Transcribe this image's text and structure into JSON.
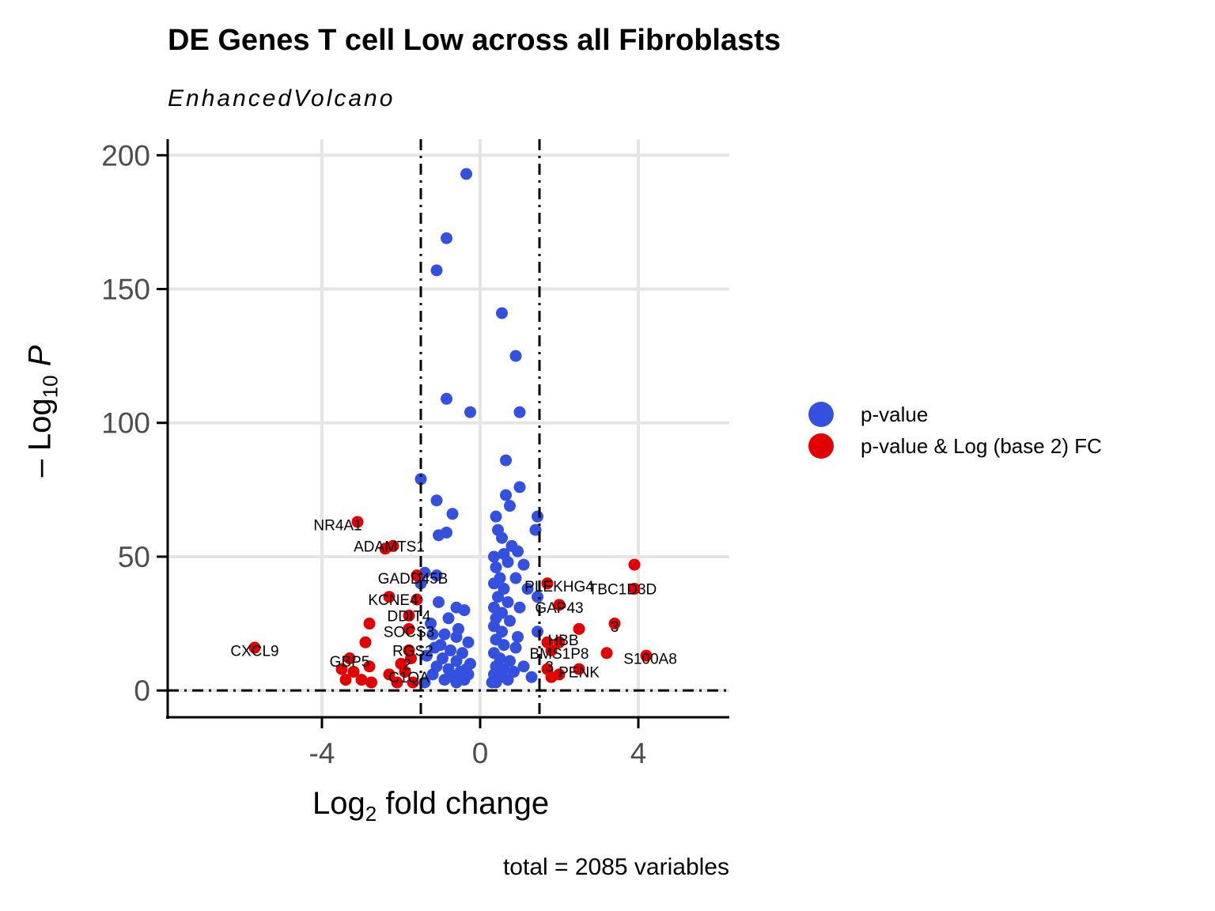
{
  "header": {
    "title": "DE Genes T cell Low across all Fibroblasts",
    "subtitle": "EnhancedVolcano",
    "caption": "total = 2085 variables"
  },
  "axes": {
    "y_label_minus": "– Log",
    "y_label_sub": "10",
    "y_label_p": "P",
    "x_label_pre": "Log",
    "x_label_sub": "2",
    "x_label_post": " fold change"
  },
  "legend": {
    "items": [
      {
        "label": "p-value",
        "color": "#3450DF"
      },
      {
        "label": "p-value & Log (base 2) FC",
        "color": "#E30000"
      }
    ]
  },
  "chart_data": {
    "type": "scatter",
    "title": "DE Genes T cell Low across all Fibroblasts",
    "subtitle": "EnhancedVolcano",
    "caption": "total = 2085 variables",
    "xlabel": "Log2 fold change",
    "ylabel": "-Log10 P",
    "xlim": [
      -7.9,
      6.3
    ],
    "ylim": [
      -10,
      206
    ],
    "x_ticks": [
      -4,
      0,
      4
    ],
    "y_ticks": [
      0,
      50,
      100,
      150,
      200
    ],
    "grid": true,
    "legend_position": "right",
    "cutoffs": {
      "fc": [
        -1.5,
        1.5
      ],
      "p_line_y": 0
    },
    "series": [
      {
        "name": "p-value",
        "color": "#3450DF",
        "points": [
          [
            -0.35,
            193
          ],
          [
            -0.85,
            169
          ],
          [
            -1.1,
            157
          ],
          [
            0.55,
            141
          ],
          [
            0.9,
            125
          ],
          [
            -0.85,
            109
          ],
          [
            -0.25,
            104
          ],
          [
            1.0,
            104
          ],
          [
            0.65,
            86
          ],
          [
            -1.5,
            79
          ],
          [
            1.0,
            76
          ],
          [
            0.65,
            73
          ],
          [
            0.75,
            69
          ],
          [
            -1.1,
            71
          ],
          [
            -0.7,
            66
          ],
          [
            1.45,
            65
          ],
          [
            0.4,
            65
          ],
          [
            1.4,
            60
          ],
          [
            -1.05,
            58
          ],
          [
            -0.85,
            59
          ],
          [
            0.45,
            60
          ],
          [
            0.55,
            57
          ],
          [
            0.8,
            54
          ],
          [
            0.95,
            52
          ],
          [
            0.6,
            51
          ],
          [
            0.35,
            50
          ],
          [
            0.7,
            48
          ],
          [
            1.1,
            47
          ],
          [
            0.4,
            46
          ],
          [
            0.5,
            42
          ],
          [
            0.9,
            42
          ],
          [
            0.35,
            40
          ],
          [
            0.6,
            38
          ],
          [
            1.2,
            38
          ],
          [
            0.45,
            35
          ],
          [
            1.45,
            35
          ],
          [
            0.7,
            33
          ],
          [
            0.35,
            31
          ],
          [
            0.55,
            29
          ],
          [
            1.0,
            31
          ],
          [
            0.4,
            27
          ],
          [
            0.75,
            26
          ],
          [
            0.35,
            24
          ],
          [
            0.55,
            22
          ],
          [
            1.45,
            22
          ],
          [
            0.4,
            19
          ],
          [
            0.6,
            17
          ],
          [
            0.9,
            16
          ],
          [
            0.35,
            14
          ],
          [
            0.5,
            12
          ],
          [
            0.75,
            11
          ],
          [
            0.4,
            9
          ],
          [
            0.6,
            8
          ],
          [
            0.85,
            7
          ],
          [
            1.1,
            9
          ],
          [
            0.35,
            6
          ],
          [
            0.5,
            5
          ],
          [
            0.7,
            4
          ],
          [
            1.3,
            5
          ],
          [
            0.4,
            3
          ],
          [
            -1.4,
            44
          ],
          [
            -1.1,
            43
          ],
          [
            -1.5,
            40
          ],
          [
            -1.05,
            33
          ],
          [
            -0.6,
            31
          ],
          [
            -0.4,
            30
          ],
          [
            -0.8,
            27
          ],
          [
            -1.25,
            25
          ],
          [
            -0.55,
            23
          ],
          [
            -0.9,
            21
          ],
          [
            -1.2,
            21
          ],
          [
            -0.6,
            20
          ],
          [
            -0.3,
            18
          ],
          [
            -1.0,
            17
          ],
          [
            -0.75,
            15
          ],
          [
            -0.45,
            14
          ],
          [
            -1.35,
            13
          ],
          [
            -0.95,
            12
          ],
          [
            -0.6,
            11
          ],
          [
            -0.25,
            10
          ],
          [
            -1.1,
            9
          ],
          [
            -0.8,
            8
          ],
          [
            -0.5,
            7
          ],
          [
            -0.3,
            6
          ],
          [
            -1.2,
            6
          ],
          [
            -0.7,
            5
          ],
          [
            -0.9,
            4
          ],
          [
            -0.4,
            4
          ],
          [
            -1.4,
            3
          ],
          [
            -0.6,
            3
          ],
          [
            0.3,
            3
          ],
          [
            -1.15,
            16
          ],
          [
            -0.35,
            8
          ],
          [
            -0.75,
            6
          ],
          [
            0.95,
            20
          ]
        ]
      },
      {
        "name": "p-value & Log (base 2) FC",
        "color": "#E30000",
        "points": [
          [
            -5.7,
            16
          ],
          [
            -3.1,
            63
          ],
          [
            -2.4,
            53
          ],
          [
            -2.2,
            54
          ],
          [
            -1.6,
            43
          ],
          [
            -2.3,
            35
          ],
          [
            -1.6,
            34
          ],
          [
            -1.8,
            28
          ],
          [
            -2.8,
            25
          ],
          [
            -1.8,
            23
          ],
          [
            -2.9,
            18
          ],
          [
            -1.8,
            15
          ],
          [
            -3.3,
            12
          ],
          [
            -1.75,
            12
          ],
          [
            -3.5,
            8
          ],
          [
            -2.8,
            9
          ],
          [
            -3.2,
            7
          ],
          [
            -1.9,
            7
          ],
          [
            -3.4,
            4
          ],
          [
            -3.0,
            4
          ],
          [
            -2.75,
            3
          ],
          [
            -2.1,
            3
          ],
          [
            -1.7,
            3
          ],
          [
            -2.3,
            6
          ],
          [
            -2.0,
            10
          ],
          [
            1.7,
            40
          ],
          [
            2.0,
            32
          ],
          [
            3.9,
            47
          ],
          [
            3.9,
            38
          ],
          [
            3.4,
            25
          ],
          [
            2.5,
            23
          ],
          [
            2.0,
            18
          ],
          [
            1.7,
            18
          ],
          [
            1.8,
            15
          ],
          [
            3.2,
            14
          ],
          [
            4.2,
            13
          ],
          [
            2.5,
            8
          ],
          [
            1.7,
            8
          ],
          [
            2.0,
            6
          ],
          [
            1.8,
            5
          ]
        ]
      }
    ],
    "labels": [
      {
        "text": "NR4A1",
        "x": -3.6,
        "y": 62
      },
      {
        "text": "ADAMTS1",
        "x": -2.3,
        "y": 54
      },
      {
        "text": "GADD45B",
        "x": -1.7,
        "y": 42
      },
      {
        "text": "KCNE4",
        "x": -2.2,
        "y": 34
      },
      {
        "text": "DDIT4",
        "x": -1.8,
        "y": 28
      },
      {
        "text": "SOCS3",
        "x": -1.8,
        "y": 22
      },
      {
        "text": "CXCL9",
        "x": -5.7,
        "y": 15
      },
      {
        "text": "RGS2",
        "x": -1.7,
        "y": 15
      },
      {
        "text": "GBP5",
        "x": -3.3,
        "y": 11
      },
      {
        "text": "2",
        "x": -1.85,
        "y": 10
      },
      {
        "text": "C1QA",
        "x": -1.8,
        "y": 5
      },
      {
        "text": "PLEKHG4",
        "x": 2.0,
        "y": 39
      },
      {
        "text": "TBC1D3D",
        "x": 3.6,
        "y": 38
      },
      {
        "text": "GAP43",
        "x": 2.0,
        "y": 31
      },
      {
        "text": "3",
        "x": 3.4,
        "y": 24
      },
      {
        "text": "HBB",
        "x": 2.1,
        "y": 19
      },
      {
        "text": "BMS1P8",
        "x": 2.0,
        "y": 14
      },
      {
        "text": "S100A8",
        "x": 4.3,
        "y": 12
      },
      {
        "text": "3",
        "x": 1.75,
        "y": 9
      },
      {
        "text": "PENK",
        "x": 2.5,
        "y": 7
      }
    ]
  }
}
